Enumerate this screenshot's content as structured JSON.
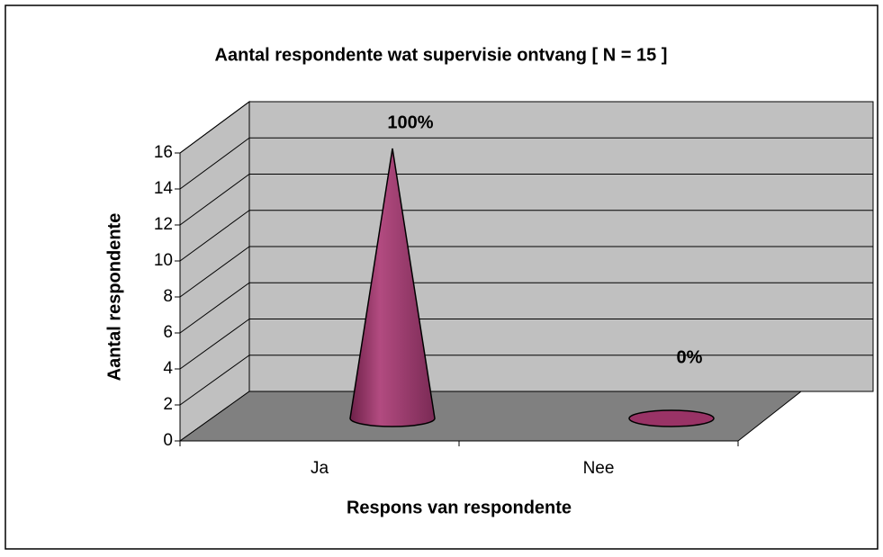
{
  "chart_data": {
    "type": "cone",
    "title": "Aantal respondente wat supervisie ontvang [ N = 15 ]",
    "x_label": "Respons van respondente",
    "y_label": "Aantal respondente",
    "categories": [
      "Ja",
      "Nee"
    ],
    "values": [
      15,
      0
    ],
    "value_labels": [
      "100%",
      "0%"
    ],
    "color": "#993366",
    "ylim": [
      0,
      16
    ],
    "yticks": [
      0,
      2,
      4,
      6,
      8,
      10,
      12,
      14,
      16
    ],
    "grid": true
  }
}
